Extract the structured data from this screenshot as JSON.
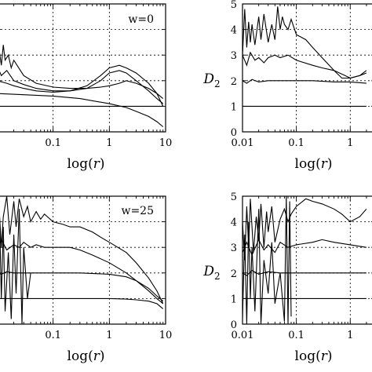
{
  "chart_data": [
    {
      "type": "line",
      "annotation": "w=0",
      "xlabel": "log(r)",
      "ylabel": "",
      "x_scale": "log",
      "x_tick_labels": [
        "0.1",
        "1",
        "10"
      ],
      "y_tick_labels": [],
      "ylim": [
        0,
        5
      ],
      "grid": true,
      "series": [
        {
          "x": [
            0.01,
            0.011,
            0.012,
            0.013,
            0.014,
            0.016,
            0.018,
            0.02,
            0.03,
            0.05,
            0.1,
            0.2,
            0.4,
            0.7,
            1.0,
            1.5,
            2.0,
            3.0,
            5.0,
            7.0,
            9.0
          ],
          "y": [
            4.0,
            3.2,
            2.6,
            3.4,
            2.8,
            3.0,
            2.5,
            2.8,
            2.2,
            1.9,
            1.75,
            1.7,
            1.7,
            1.75,
            1.8,
            1.9,
            2.0,
            1.9,
            1.7,
            1.5,
            1.3
          ]
        },
        {
          "x": [
            0.01,
            0.012,
            0.015,
            0.02,
            0.03,
            0.05,
            0.1,
            0.2,
            0.4,
            0.7,
            1.0,
            1.5,
            2.0,
            3.0,
            5.0,
            7.0,
            9.0
          ],
          "y": [
            2.6,
            2.2,
            2.4,
            2.0,
            1.85,
            1.7,
            1.6,
            1.6,
            1.7,
            2.0,
            2.3,
            2.4,
            2.3,
            2.0,
            1.6,
            1.3,
            1.1
          ]
        },
        {
          "x": [
            0.01,
            0.015,
            0.02,
            0.03,
            0.05,
            0.1,
            0.2,
            0.4,
            0.7,
            1.0,
            1.5,
            2.0,
            3.0,
            5.0,
            7.0,
            9.0
          ],
          "y": [
            2.0,
            1.9,
            1.8,
            1.7,
            1.6,
            1.55,
            1.6,
            1.8,
            2.2,
            2.5,
            2.6,
            2.5,
            2.3,
            1.9,
            1.5,
            1.0
          ]
        },
        {
          "x": [
            0.01,
            0.05,
            0.1,
            0.5,
            1.0,
            2.0,
            4.0,
            7.0,
            9.0
          ],
          "y": [
            1.0,
            1.0,
            1.0,
            1.0,
            1.0,
            1.0,
            1.0,
            1.0,
            1.0
          ]
        },
        {
          "x": [
            0.01,
            0.03,
            0.1,
            0.3,
            1.0,
            2.0,
            3.0,
            5.0,
            7.0,
            9.0
          ],
          "y": [
            1.5,
            1.45,
            1.4,
            1.3,
            1.1,
            0.95,
            0.8,
            0.6,
            0.4,
            0.2
          ]
        }
      ]
    },
    {
      "type": "line",
      "annotation": "",
      "xlabel": "log(r)",
      "ylabel": "D2",
      "ylabel_main": "D",
      "ylabel_sub": "2",
      "x_scale": "log",
      "x_tick_labels": [
        "0.01",
        "0.1",
        "1"
      ],
      "y_tick_labels": [
        "0",
        "1",
        "2",
        "3",
        "4",
        "5"
      ],
      "ylim": [
        0,
        5
      ],
      "grid": true,
      "series": [
        {
          "x": [
            0.01,
            0.011,
            0.012,
            0.013,
            0.014,
            0.015,
            0.017,
            0.02,
            0.022,
            0.025,
            0.03,
            0.035,
            0.04,
            0.045,
            0.05,
            0.055,
            0.06,
            0.07,
            0.08,
            0.1,
            0.15,
            0.2,
            0.3,
            0.5,
            0.7,
            1.0,
            1.5,
            2.0
          ],
          "y": [
            3.0,
            4.8,
            3.3,
            4.3,
            3.5,
            4.2,
            3.4,
            4.5,
            3.6,
            4.6,
            3.5,
            4.2,
            3.6,
            4.9,
            4.0,
            4.5,
            4.2,
            4.0,
            4.4,
            3.8,
            3.6,
            3.3,
            2.9,
            2.4,
            2.1,
            2.1,
            2.2,
            2.4
          ]
        },
        {
          "x": [
            0.01,
            0.012,
            0.014,
            0.017,
            0.02,
            0.025,
            0.03,
            0.04,
            0.05,
            0.07,
            0.1,
            0.2,
            0.3,
            0.5,
            0.8,
            1.0,
            1.5,
            2.0
          ],
          "y": [
            3.0,
            2.6,
            3.1,
            2.8,
            2.9,
            2.7,
            2.9,
            3.0,
            2.9,
            3.0,
            2.8,
            2.6,
            2.5,
            2.4,
            2.2,
            2.1,
            2.2,
            2.3
          ]
        },
        {
          "x": [
            0.01,
            0.012,
            0.015,
            0.02,
            0.03,
            0.05,
            0.1,
            0.2,
            0.5,
            1.0,
            2.0
          ],
          "y": [
            2.0,
            1.9,
            2.05,
            1.95,
            2.0,
            2.0,
            2.0,
            2.0,
            1.95,
            1.95,
            1.9
          ]
        },
        {
          "x": [
            0.01,
            0.1,
            1.0,
            2.0
          ],
          "y": [
            1.0,
            1.0,
            1.0,
            1.0
          ]
        }
      ]
    },
    {
      "type": "line",
      "annotation": "w=25",
      "xlabel": "log(r)",
      "ylabel": "",
      "x_scale": "log",
      "x_tick_labels": [
        "0.1",
        "1",
        "10"
      ],
      "y_tick_labels": [],
      "ylim": [
        0,
        5
      ],
      "grid": true,
      "series": [
        {
          "x": [
            0.01,
            0.011,
            0.012,
            0.013,
            0.015,
            0.017,
            0.02,
            0.022,
            0.025,
            0.03,
            0.035,
            0.04,
            0.05,
            0.06,
            0.07,
            0.1,
            0.15,
            0.2,
            0.3,
            0.5,
            0.7,
            1.0,
            2.0,
            3.0,
            5.0,
            7.0,
            9.0
          ],
          "y": [
            3.2,
            4.5,
            3.0,
            4.2,
            5.0,
            3.5,
            4.8,
            3.8,
            4.9,
            4.2,
            4.6,
            4.0,
            4.4,
            4.1,
            4.3,
            4.0,
            3.9,
            3.8,
            3.8,
            3.6,
            3.4,
            3.2,
            2.8,
            2.4,
            1.8,
            1.3,
            0.8
          ]
        },
        {
          "x": [
            0.01,
            0.012,
            0.015,
            0.02,
            0.025,
            0.03,
            0.04,
            0.05,
            0.07,
            0.1,
            0.2,
            0.3,
            0.5,
            1.0,
            2.0,
            3.0,
            5.0,
            7.0,
            9.0
          ],
          "y": [
            2.8,
            3.3,
            2.9,
            3.1,
            3.0,
            3.2,
            3.0,
            3.1,
            3.0,
            3.0,
            3.0,
            2.9,
            2.7,
            2.4,
            2.0,
            1.7,
            1.3,
            1.0,
            0.8
          ]
        },
        {
          "x": [
            0.01,
            0.012,
            0.015,
            0.02,
            0.03,
            0.05,
            0.1,
            0.3,
            1.0,
            2.0,
            3.0,
            5.0,
            7.0,
            9.0
          ],
          "y": [
            2.0,
            1.95,
            2.05,
            2.0,
            2.0,
            2.0,
            2.0,
            2.0,
            1.95,
            1.85,
            1.7,
            1.4,
            1.1,
            0.9
          ]
        },
        {
          "x": [
            0.01,
            0.1,
            0.3,
            1.0,
            2.0,
            3.0,
            5.0,
            7.0,
            9.0
          ],
          "y": [
            1.0,
            1.0,
            1.0,
            1.0,
            0.98,
            0.95,
            0.9,
            0.8,
            0.6
          ]
        },
        {
          "x": [
            0.01,
            0.011,
            0.012,
            0.013,
            0.014,
            0.016,
            0.018,
            0.02,
            0.022,
            0.025,
            0.028,
            0.03,
            0.035,
            0.04
          ],
          "y": [
            2.5,
            4.8,
            1.0,
            3.8,
            0.5,
            2.8,
            0.2,
            3.5,
            1.2,
            4.5,
            0.0,
            3.0,
            1.0,
            2.0
          ]
        }
      ]
    },
    {
      "type": "line",
      "annotation": "",
      "xlabel": "log(r)",
      "ylabel": "D2",
      "ylabel_main": "D",
      "ylabel_sub": "2",
      "x_scale": "log",
      "x_tick_labels": [
        "0.01",
        "0.1",
        "1"
      ],
      "y_tick_labels": [
        "0",
        "1",
        "2",
        "3",
        "4",
        "5"
      ],
      "ylim": [
        0,
        5
      ],
      "grid": true,
      "series": [
        {
          "x": [
            0.01,
            0.011,
            0.012,
            0.013,
            0.014,
            0.016,
            0.018,
            0.02,
            0.022,
            0.025,
            0.028,
            0.03,
            0.035,
            0.04,
            0.05,
            0.06,
            0.07,
            0.08,
            0.1,
            0.15,
            0.2,
            0.3,
            0.5,
            0.7,
            1.0,
            1.5,
            2.0
          ],
          "y": [
            4.0,
            2.5,
            4.6,
            3.0,
            4.9,
            2.8,
            4.2,
            3.3,
            4.7,
            3.0,
            4.4,
            3.6,
            4.6,
            3.2,
            4.1,
            4.5,
            4.0,
            4.3,
            4.6,
            4.9,
            4.8,
            4.7,
            4.5,
            4.3,
            4.0,
            4.2,
            4.5
          ]
        },
        {
          "x": [
            0.01,
            0.012,
            0.015,
            0.02,
            0.025,
            0.03,
            0.04,
            0.05,
            0.07,
            0.1,
            0.2,
            0.3,
            0.5,
            1.0,
            2.0
          ],
          "y": [
            2.8,
            3.2,
            2.7,
            3.3,
            2.9,
            3.1,
            2.8,
            3.2,
            3.0,
            3.1,
            3.2,
            3.3,
            3.2,
            3.1,
            3.0
          ]
        },
        {
          "x": [
            0.01,
            0.012,
            0.015,
            0.02,
            0.03,
            0.05,
            0.1,
            0.3,
            1.0,
            2.0
          ],
          "y": [
            2.0,
            1.9,
            2.1,
            1.95,
            2.05,
            2.0,
            2.0,
            2.0,
            2.0,
            2.0
          ]
        },
        {
          "x": [
            0.01,
            0.1,
            1.0,
            2.0
          ],
          "y": [
            1.0,
            1.0,
            1.0,
            1.0
          ]
        },
        {
          "x": [
            0.01,
            0.011,
            0.012,
            0.013,
            0.014,
            0.015,
            0.017,
            0.02,
            0.022,
            0.025,
            0.03,
            0.035,
            0.04,
            0.05,
            0.06,
            0.065,
            0.07,
            0.075,
            0.08
          ],
          "y": [
            0.2,
            3.5,
            0.0,
            4.0,
            1.0,
            3.0,
            0.5,
            4.5,
            0.0,
            2.5,
            1.2,
            3.2,
            0.8,
            2.0,
            0.1,
            5.0,
            0.0,
            4.8,
            0.3
          ]
        }
      ]
    }
  ]
}
